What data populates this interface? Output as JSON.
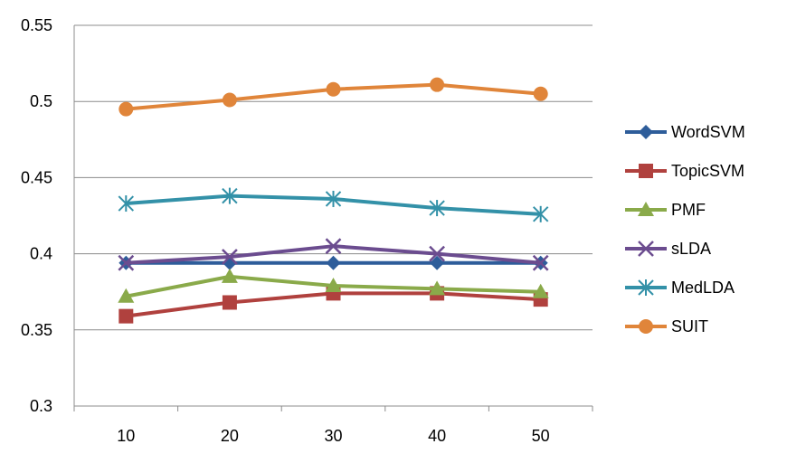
{
  "chart_data": {
    "type": "line",
    "title": "",
    "xlabel": "",
    "ylabel": "",
    "x": [
      10,
      20,
      30,
      40,
      50
    ],
    "xtick_labels": [
      "10",
      "20",
      "30",
      "40",
      "50"
    ],
    "ylim": [
      0.3,
      0.55
    ],
    "ytick_values": [
      0.3,
      0.35,
      0.4,
      0.45,
      0.5,
      0.55
    ],
    "ytick_labels": [
      "0.3",
      "0.35",
      "0.4",
      "0.45",
      "0.5",
      "0.55"
    ],
    "grid": "horizontal",
    "legend_position": "right",
    "series": [
      {
        "name": "WordSVM",
        "color": "#2E5D9A",
        "marker": "diamond",
        "values": [
          0.394,
          0.394,
          0.394,
          0.394,
          0.394
        ]
      },
      {
        "name": "TopicSVM",
        "color": "#B0413E",
        "marker": "square",
        "values": [
          0.359,
          0.368,
          0.374,
          0.374,
          0.37
        ]
      },
      {
        "name": "PMF",
        "color": "#8AAA4A",
        "marker": "triangle",
        "values": [
          0.372,
          0.385,
          0.379,
          0.377,
          0.375
        ]
      },
      {
        "name": "sLDA",
        "color": "#6B4C8F",
        "marker": "x",
        "values": [
          0.394,
          0.398,
          0.405,
          0.4,
          0.394
        ]
      },
      {
        "name": "MedLDA",
        "color": "#3391A8",
        "marker": "asterisk",
        "values": [
          0.433,
          0.438,
          0.436,
          0.43,
          0.426
        ]
      },
      {
        "name": "SUIT",
        "color": "#E0853A",
        "marker": "circle",
        "values": [
          0.495,
          0.501,
          0.508,
          0.511,
          0.505
        ]
      }
    ]
  }
}
